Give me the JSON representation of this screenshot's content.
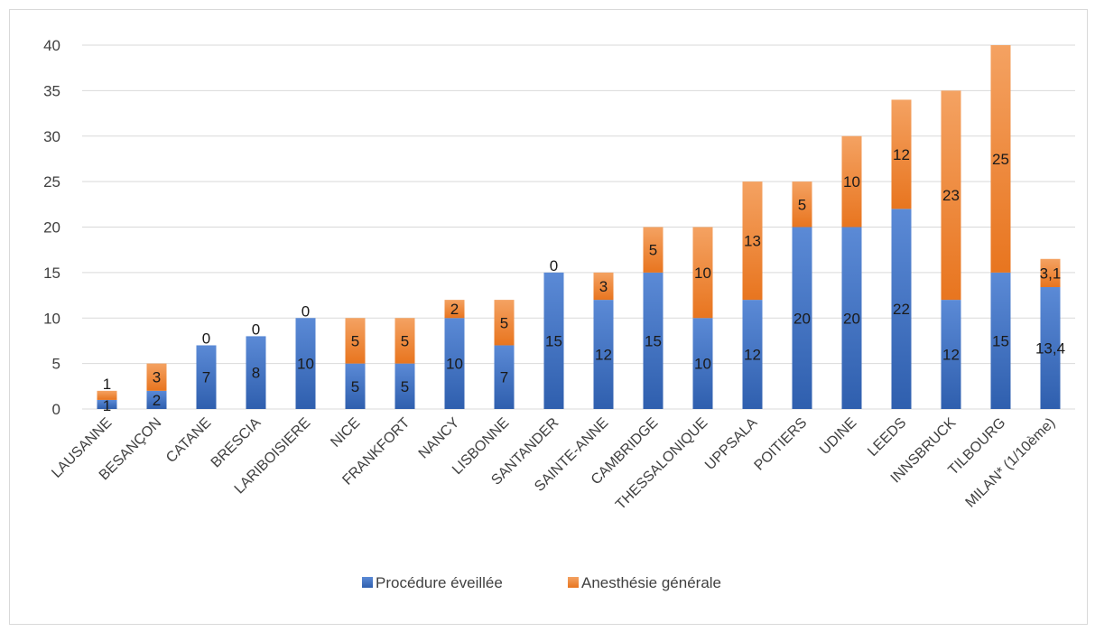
{
  "chart_data": {
    "type": "bar",
    "stacked": true,
    "categories": [
      "LAUSANNE",
      "BESANÇON",
      "CATANE",
      "BRESCIA",
      "LARIBOISIERE",
      "NICE",
      "FRANKFORT",
      "NANCY",
      "LISBONNE",
      "SANTANDER",
      "SAINTE-ANNE",
      "CAMBRIDGE",
      "THESSALONIQUE",
      "UPPSALA",
      "POITIERS",
      "UDINE",
      "LEEDS",
      "INNSBRUCK",
      "TILBOURG",
      "MILAN* (1/10ème)"
    ],
    "series": [
      {
        "name": "Procédure éveillée",
        "color": "#4472c4",
        "values": [
          1,
          2,
          7,
          8,
          10,
          5,
          5,
          10,
          7,
          15,
          12,
          15,
          10,
          12,
          20,
          20,
          22,
          12,
          15,
          13.4
        ],
        "labels": [
          "1",
          "2",
          "7",
          "8",
          "10",
          "5",
          "5",
          "10",
          "7",
          "15",
          "12",
          "15",
          "10",
          "12",
          "20",
          "20",
          "22",
          "12",
          "15",
          "13,4"
        ]
      },
      {
        "name": "Anesthésie générale",
        "color": "#ed7d31",
        "values": [
          1,
          3,
          0,
          0,
          0,
          5,
          5,
          2,
          5,
          0,
          3,
          5,
          10,
          13,
          5,
          10,
          12,
          23,
          25,
          3.1
        ],
        "labels": [
          "1",
          "3",
          "0",
          "0",
          "0",
          "5",
          "5",
          "2",
          "5",
          "0",
          "3",
          "5",
          "10",
          "13",
          "5",
          "10",
          "12",
          "23",
          "25",
          "3,1"
        ]
      }
    ],
    "ylim": [
      0,
      40
    ],
    "yticks": [
      "0",
      "5",
      "10",
      "15",
      "20",
      "25",
      "30",
      "35",
      "40"
    ],
    "grid": true,
    "legend_position": "bottom"
  }
}
